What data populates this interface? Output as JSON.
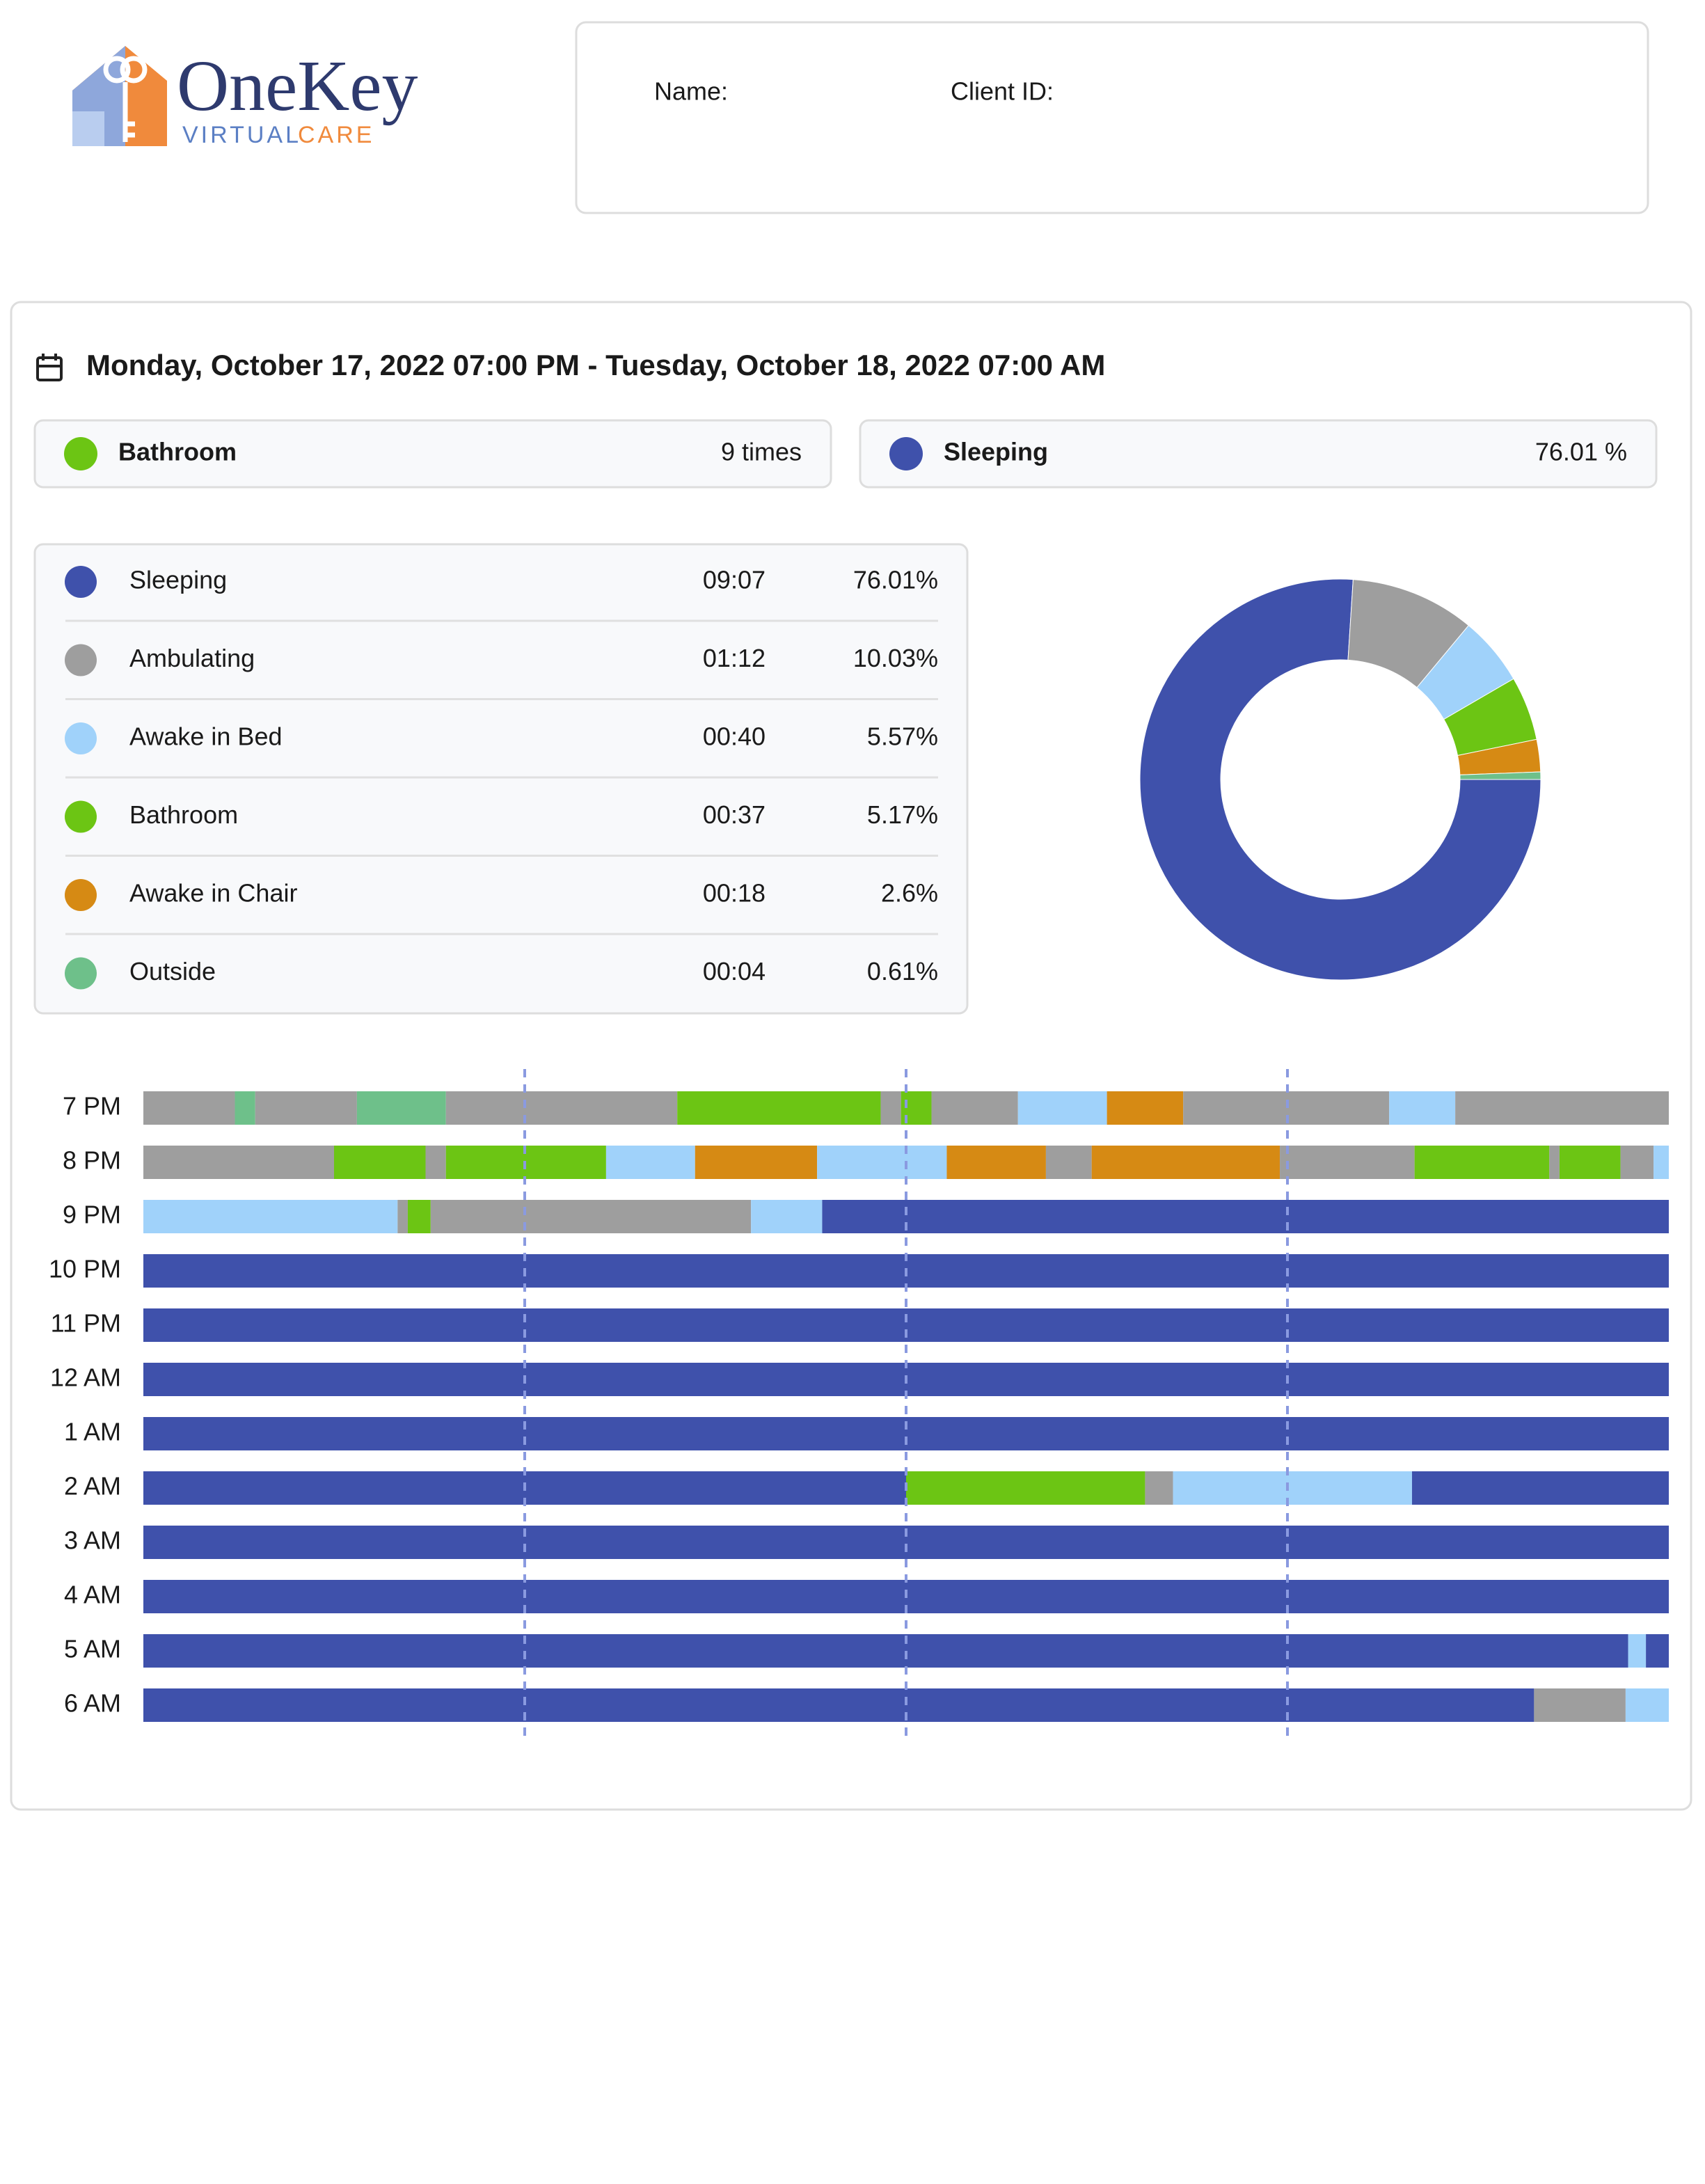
{
  "logo": {
    "name": "OneKey",
    "tagline_1": "VIRTUAL",
    "tagline_2": "CARE"
  },
  "client": {
    "name_label": "Name:",
    "id_label": "Client ID:"
  },
  "period": "Monday, October 17, 2022 07:00 PM - Tuesday, October 18, 2022 07:00 AM",
  "summary": [
    {
      "label": "Bathroom",
      "value": "9 times",
      "color": "#6cc514"
    },
    {
      "label": "Sleeping",
      "value": "76.01 %",
      "color": "#3f51ab"
    }
  ],
  "activities": {
    "rows": [
      {
        "label": "Sleeping",
        "duration": "09:07",
        "percent": {
          "value": 76.01,
          "label": "76.01%"
        },
        "color": "#3f51ab"
      },
      {
        "label": "Ambulating",
        "duration": "01:12",
        "percent": {
          "value": 10.03,
          "label": "10.03%"
        },
        "color": "#9e9e9e"
      },
      {
        "label": "Awake in Bed",
        "duration": "00:40",
        "percent": {
          "value": 5.57,
          "label": "5.57%"
        },
        "color": "#a0d2fa"
      },
      {
        "label": "Bathroom",
        "duration": "00:37",
        "percent": {
          "value": 5.17,
          "label": "5.17%"
        },
        "color": "#6cc514"
      },
      {
        "label": "Awake in Chair",
        "duration": "00:18",
        "percent": {
          "value": 2.6,
          "label": "2.6%"
        },
        "color": "#d68a14"
      },
      {
        "label": "Outside",
        "duration": "00:04",
        "percent": {
          "value": 0.61,
          "label": "0.61%"
        },
        "color": "#6ec08a"
      }
    ]
  },
  "timeline": {
    "xlim": [
      0,
      60
    ],
    "xticks": [
      15,
      30,
      45
    ],
    "rows": [
      {
        "label": "7 PM",
        "segments": [
          {
            "start": 0,
            "end": 3.6,
            "activity": 1
          },
          {
            "start": 3.6,
            "end": 4.4,
            "activity": 5
          },
          {
            "start": 4.4,
            "end": 8.4,
            "activity": 1
          },
          {
            "start": 8.4,
            "end": 11.9,
            "activity": 5
          },
          {
            "start": 11.9,
            "end": 21,
            "activity": 1
          },
          {
            "start": 21,
            "end": 29,
            "activity": 3
          },
          {
            "start": 29,
            "end": 29.8,
            "activity": 1
          },
          {
            "start": 29.8,
            "end": 31,
            "activity": 3
          },
          {
            "start": 31,
            "end": 34.4,
            "activity": 1
          },
          {
            "start": 34.4,
            "end": 37.9,
            "activity": 2
          },
          {
            "start": 37.9,
            "end": 40.9,
            "activity": 4
          },
          {
            "start": 40.9,
            "end": 49,
            "activity": 1
          },
          {
            "start": 49,
            "end": 51.6,
            "activity": 2
          },
          {
            "start": 51.6,
            "end": 60,
            "activity": 1
          }
        ]
      },
      {
        "label": "8 PM",
        "segments": [
          {
            "start": 0,
            "end": 7.5,
            "activity": 1
          },
          {
            "start": 7.5,
            "end": 11.1,
            "activity": 3
          },
          {
            "start": 11.1,
            "end": 11.9,
            "activity": 1
          },
          {
            "start": 11.9,
            "end": 18.2,
            "activity": 3
          },
          {
            "start": 18.2,
            "end": 21.7,
            "activity": 2
          },
          {
            "start": 21.7,
            "end": 26.5,
            "activity": 4
          },
          {
            "start": 26.5,
            "end": 31.6,
            "activity": 2
          },
          {
            "start": 31.6,
            "end": 35.5,
            "activity": 4
          },
          {
            "start": 35.5,
            "end": 37.3,
            "activity": 1
          },
          {
            "start": 37.3,
            "end": 44.7,
            "activity": 4
          },
          {
            "start": 44.7,
            "end": 50,
            "activity": 1
          },
          {
            "start": 50,
            "end": 55.3,
            "activity": 3
          },
          {
            "start": 55.3,
            "end": 55.7,
            "activity": 1
          },
          {
            "start": 55.7,
            "end": 58.1,
            "activity": 3
          },
          {
            "start": 58.1,
            "end": 59.4,
            "activity": 1
          },
          {
            "start": 59.4,
            "end": 60,
            "activity": 2
          }
        ]
      },
      {
        "label": "9 PM",
        "segments": [
          {
            "start": 0,
            "end": 10,
            "activity": 2
          },
          {
            "start": 10,
            "end": 10.4,
            "activity": 1
          },
          {
            "start": 10.4,
            "end": 11.3,
            "activity": 3
          },
          {
            "start": 11.3,
            "end": 23.9,
            "activity": 1
          },
          {
            "start": 23.9,
            "end": 26.7,
            "activity": 2
          },
          {
            "start": 26.7,
            "end": 60,
            "activity": 0
          }
        ]
      },
      {
        "label": "10 PM",
        "segments": [
          {
            "start": 0,
            "end": 60,
            "activity": 0
          }
        ]
      },
      {
        "label": "11 PM",
        "segments": [
          {
            "start": 0,
            "end": 60,
            "activity": 0
          }
        ]
      },
      {
        "label": "12 AM",
        "segments": [
          {
            "start": 0,
            "end": 60,
            "activity": 0
          }
        ]
      },
      {
        "label": "1 AM",
        "segments": [
          {
            "start": 0,
            "end": 60,
            "activity": 0
          }
        ]
      },
      {
        "label": "2 AM",
        "segments": [
          {
            "start": 0,
            "end": 30,
            "activity": 0
          },
          {
            "start": 30,
            "end": 39.4,
            "activity": 3
          },
          {
            "start": 39.4,
            "end": 40.5,
            "activity": 1
          },
          {
            "start": 40.5,
            "end": 49.9,
            "activity": 2
          },
          {
            "start": 49.9,
            "end": 60,
            "activity": 0
          }
        ]
      },
      {
        "label": "3 AM",
        "segments": [
          {
            "start": 0,
            "end": 60,
            "activity": 0
          }
        ]
      },
      {
        "label": "4 AM",
        "segments": [
          {
            "start": 0,
            "end": 60,
            "activity": 0
          }
        ]
      },
      {
        "label": "5 AM",
        "segments": [
          {
            "start": 0,
            "end": 58.4,
            "activity": 0
          },
          {
            "start": 58.4,
            "end": 59.1,
            "activity": 2
          },
          {
            "start": 59.1,
            "end": 60,
            "activity": 0
          }
        ]
      },
      {
        "label": "6 AM",
        "segments": [
          {
            "start": 0,
            "end": 54.7,
            "activity": 0
          },
          {
            "start": 54.7,
            "end": 58.3,
            "activity": 1
          },
          {
            "start": 58.3,
            "end": 60,
            "activity": 2
          }
        ]
      }
    ]
  }
}
